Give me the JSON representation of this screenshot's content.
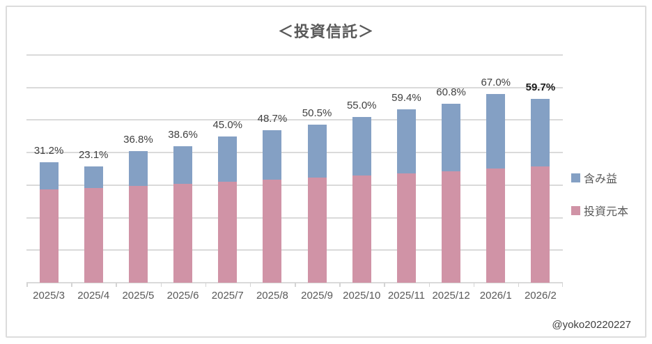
{
  "title": "＜投資信託＞",
  "watermark": "@yoko20220227",
  "legend": [
    {
      "label": "含み益",
      "color": "#84a0c4"
    },
    {
      "label": "投資元本",
      "color": "#d093a6"
    }
  ],
  "colors": {
    "gain_blue": "#84a0c4",
    "principal_pink": "#d093a6",
    "gridline": "#dadada",
    "frame_border": "#dcdcdc",
    "title_text": "#595959",
    "axis_text": "#595959",
    "label_text": "#404040",
    "bold_label_text": "#1a1a1a",
    "background": "#ffffff"
  },
  "chart_data": {
    "type": "bar",
    "stacked": true,
    "title": "＜投資信託＞",
    "categories": [
      "2025/3",
      "2025/4",
      "2025/5",
      "2025/6",
      "2025/7",
      "2025/8",
      "2025/9",
      "2025/10",
      "2025/11",
      "2025/12",
      "2026/1",
      "2026/2"
    ],
    "series": [
      {
        "name": "投資元本",
        "color": "#d093a6",
        "values": [
          28.7,
          29.1,
          29.8,
          30.4,
          31.0,
          31.7,
          32.3,
          33.0,
          33.6,
          34.3,
          35.1,
          35.8
        ]
      },
      {
        "name": "含み益",
        "color": "#84a0c4",
        "values": [
          8.4,
          6.6,
          10.7,
          11.6,
          13.9,
          15.2,
          16.3,
          18.0,
          19.7,
          20.8,
          22.9,
          20.8
        ]
      }
    ],
    "data_labels": [
      "31.2%",
      "23.1%",
      "36.8%",
      "38.6%",
      "45.0%",
      "48.7%",
      "50.5%",
      "55.0%",
      "59.4%",
      "60.8%",
      "67.0%",
      "59.7%"
    ],
    "data_label_bold": [
      false,
      false,
      false,
      false,
      false,
      false,
      false,
      false,
      false,
      false,
      false,
      true
    ],
    "xlabel": "",
    "ylabel": "",
    "ylim": [
      0,
      70
    ],
    "gridline_step": 10,
    "y_tick_labels_visible": false,
    "grid": true,
    "legend_position": "right"
  }
}
